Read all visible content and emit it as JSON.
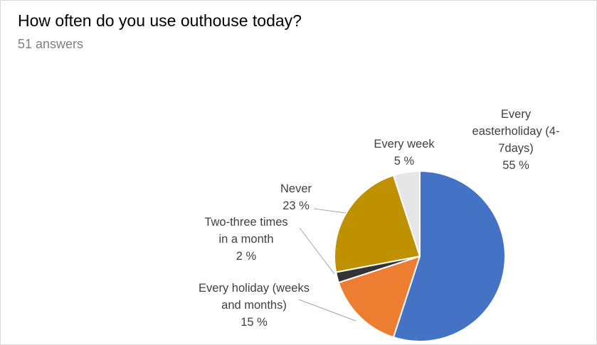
{
  "chart_data": {
    "type": "pie",
    "title": "How often do you use outhouse today?",
    "subtitle": "51 answers",
    "slices": [
      {
        "name": "Every easterholiday (4-7days)",
        "label_lines": [
          "Every",
          "easterholiday (4-",
          "7days)"
        ],
        "value": 55,
        "value_label": "55 %",
        "color": "#4472c4"
      },
      {
        "name": "Every holiday (weeks and months)",
        "label_lines": [
          "Every holiday (weeks",
          "and months)"
        ],
        "value": 15,
        "value_label": "15 %",
        "color": "#ed7d31"
      },
      {
        "name": "Two-three times in a month",
        "label_lines": [
          "Two-three times",
          "in a month"
        ],
        "value": 2,
        "value_label": "2 %",
        "color": "#333333"
      },
      {
        "name": "Never",
        "label_lines": [
          "Never"
        ],
        "value": 23,
        "value_label": "23 %",
        "color": "#bf9000"
      },
      {
        "name": "Every week",
        "label_lines": [
          "Every week"
        ],
        "value": 5,
        "value_label": "5 %",
        "color": "#e7e6e6"
      }
    ]
  }
}
